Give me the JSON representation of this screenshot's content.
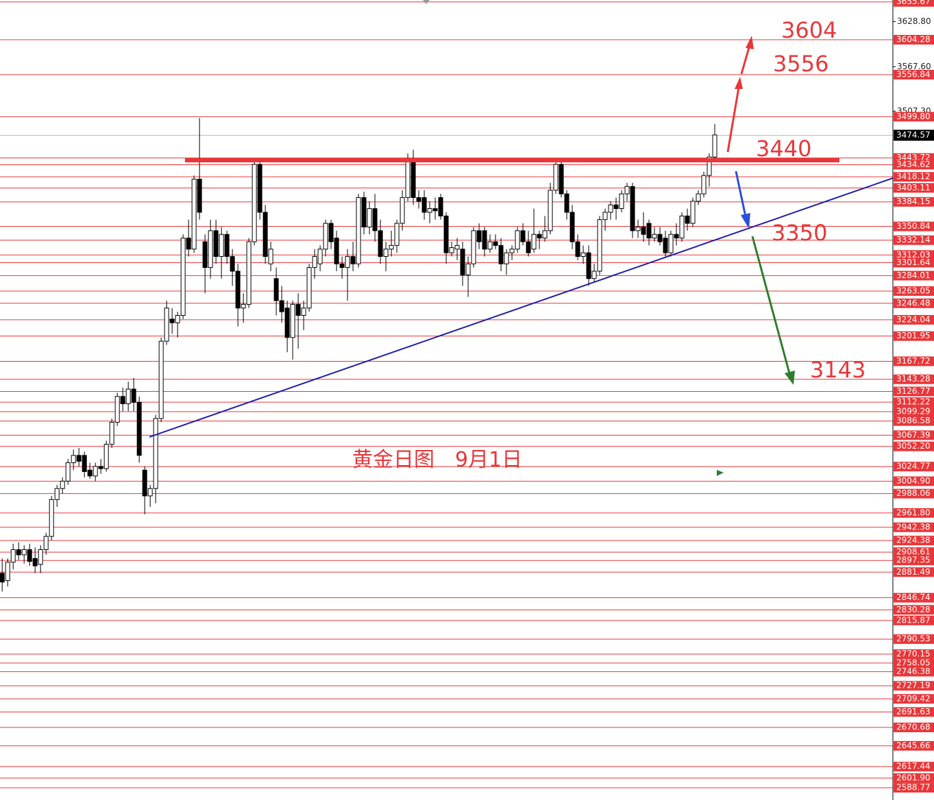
{
  "chart_data": {
    "type": "candlestick",
    "title": "黄金日图　9月1日",
    "annotations": [
      "3604",
      "3556",
      "3440",
      "3350",
      "3143"
    ],
    "xlim": [
      -0.4,
      162.5
    ],
    "ylim": [
      2572.1,
      3658.2
    ],
    "current_price": 3474.57,
    "level_color": "#e8373a",
    "up_color": "#ffffff",
    "down_color": "#000000",
    "yticks": [
      {
        "value": 3628.8,
        "label": "3628.80"
      },
      {
        "value": 3567.6,
        "label": "3567.60"
      },
      {
        "value": 3507.3,
        "label": "3507.30"
      }
    ],
    "levels": [
      3655.67,
      3604.28,
      3556.84,
      {
        "value": 3499.8,
        "label": "3499.80"
      },
      3443.72,
      3434.62,
      3418.12,
      3403.11,
      3384.15,
      3350.84,
      3332.14,
      3312.03,
      3301.64,
      3284.01,
      3263.05,
      3246.48,
      3224.04,
      3201.95,
      3167.72,
      3143.28,
      3126.77,
      3112.22,
      3099.29,
      3086.58,
      3067.39,
      {
        "value": 3052.2,
        "label": "3052.20"
      },
      3024.77,
      {
        "value": 3004.9,
        "label": "3004.90"
      },
      2988.06,
      {
        "value": 2961.8,
        "label": "2961.80"
      },
      2942.38,
      2924.38,
      2908.61,
      2897.35,
      2881.49,
      2846.74,
      2830.28,
      2815.87,
      2790.53,
      2770.15,
      2758.05,
      2746.38,
      2727.19,
      2709.42,
      2691.63,
      2670.68,
      2645.66,
      2617.44,
      {
        "value": 2601.9,
        "label": "2601.90"
      },
      2588.77
    ],
    "ohlc": [
      [
        2880,
        2900,
        2855,
        2868
      ],
      [
        2870,
        2900,
        2862,
        2895
      ],
      [
        2895,
        2920,
        2885,
        2912
      ],
      [
        2912,
        2922,
        2898,
        2905
      ],
      [
        2905,
        2918,
        2893,
        2912
      ],
      [
        2912,
        2920,
        2890,
        2896
      ],
      [
        2900,
        2915,
        2880,
        2890
      ],
      [
        2892,
        2918,
        2880,
        2912
      ],
      [
        2912,
        2935,
        2905,
        2930
      ],
      [
        2930,
        2985,
        2925,
        2980
      ],
      [
        2980,
        3000,
        2970,
        2995
      ],
      [
        2995,
        3010,
        2988,
        3005
      ],
      [
        3005,
        3035,
        3000,
        3030
      ],
      [
        3030,
        3048,
        3020,
        3040
      ],
      [
        3040,
        3050,
        3025,
        3032
      ],
      [
        3040,
        3045,
        3010,
        3018
      ],
      [
        3020,
        3030,
        3008,
        3012
      ],
      [
        3012,
        3030,
        3005,
        3025
      ],
      [
        3025,
        3035,
        3015,
        3022
      ],
      [
        3022,
        3060,
        3018,
        3055
      ],
      [
        3055,
        3090,
        3050,
        3085
      ],
      [
        3085,
        3125,
        3080,
        3120
      ],
      [
        3120,
        3132,
        3100,
        3110
      ],
      [
        3110,
        3140,
        3100,
        3130
      ],
      [
        3130,
        3145,
        3100,
        3112
      ],
      [
        3112,
        3120,
        3030,
        3040
      ],
      [
        3020,
        3025,
        2960,
        2985
      ],
      [
        2985,
        3000,
        2970,
        2995
      ],
      [
        2995,
        3095,
        2975,
        3090
      ],
      [
        3090,
        3200,
        3085,
        3195
      ],
      [
        3195,
        3250,
        3190,
        3240
      ],
      [
        3225,
        3240,
        3205,
        3220
      ],
      [
        3220,
        3235,
        3200,
        3230
      ],
      [
        3230,
        3340,
        3225,
        3335
      ],
      [
        3335,
        3360,
        3310,
        3320
      ],
      [
        3320,
        3420,
        3315,
        3415
      ],
      [
        3415,
        3498,
        3360,
        3370
      ],
      [
        3330,
        3340,
        3260,
        3295
      ],
      [
        3295,
        3360,
        3280,
        3345
      ],
      [
        3345,
        3360,
        3300,
        3310
      ],
      [
        3310,
        3350,
        3280,
        3340
      ],
      [
        3340,
        3345,
        3300,
        3310
      ],
      [
        3310,
        3320,
        3270,
        3290
      ],
      [
        3290,
        3300,
        3215,
        3240
      ],
      [
        3240,
        3260,
        3220,
        3245
      ],
      [
        3245,
        3335,
        3240,
        3330
      ],
      [
        3330,
        3440,
        3325,
        3435
      ],
      [
        3435,
        3440,
        3360,
        3370
      ],
      [
        3370,
        3380,
        3300,
        3310
      ],
      [
        3300,
        3330,
        3290,
        3320
      ],
      [
        3280,
        3295,
        3230,
        3250
      ],
      [
        3250,
        3270,
        3220,
        3235
      ],
      [
        3240,
        3250,
        3180,
        3200
      ],
      [
        3200,
        3250,
        3170,
        3245
      ],
      [
        3245,
        3260,
        3185,
        3230
      ],
      [
        3230,
        3250,
        3210,
        3240
      ],
      [
        3240,
        3300,
        3235,
        3295
      ],
      [
        3295,
        3320,
        3280,
        3310
      ],
      [
        3300,
        3325,
        3290,
        3320
      ],
      [
        3320,
        3360,
        3310,
        3355
      ],
      [
        3355,
        3360,
        3320,
        3330
      ],
      [
        3335,
        3345,
        3290,
        3300
      ],
      [
        3300,
        3310,
        3280,
        3295
      ],
      [
        3295,
        3320,
        3250,
        3310
      ],
      [
        3310,
        3330,
        3290,
        3300
      ],
      [
        3300,
        3395,
        3295,
        3390
      ],
      [
        3390,
        3398,
        3340,
        3350
      ],
      [
        3350,
        3385,
        3340,
        3375
      ],
      [
        3375,
        3395,
        3330,
        3345
      ],
      [
        3345,
        3360,
        3300,
        3310
      ],
      [
        3310,
        3330,
        3290,
        3320
      ],
      [
        3320,
        3345,
        3310,
        3325
      ],
      [
        3325,
        3360,
        3315,
        3355
      ],
      [
        3355,
        3400,
        3345,
        3390
      ],
      [
        3390,
        3450,
        3385,
        3440
      ],
      [
        3440,
        3455,
        3380,
        3390
      ],
      [
        3390,
        3400,
        3375,
        3385
      ],
      [
        3390,
        3400,
        3360,
        3370
      ],
      [
        3370,
        3385,
        3355,
        3375
      ],
      [
        3375,
        3390,
        3360,
        3372
      ],
      [
        3390,
        3395,
        3360,
        3365
      ],
      [
        3365,
        3370,
        3300,
        3315
      ],
      [
        3315,
        3330,
        3310,
        3322
      ],
      [
        3320,
        3335,
        3305,
        3325
      ],
      [
        3320,
        3330,
        3270,
        3285
      ],
      [
        3285,
        3310,
        3255,
        3300
      ],
      [
        3300,
        3350,
        3295,
        3345
      ],
      [
        3345,
        3355,
        3320,
        3330
      ],
      [
        3345,
        3350,
        3310,
        3320
      ],
      [
        3320,
        3340,
        3315,
        3330
      ],
      [
        3330,
        3340,
        3320,
        3325
      ],
      [
        3325,
        3335,
        3290,
        3300
      ],
      [
        3300,
        3320,
        3285,
        3315
      ],
      [
        3315,
        3325,
        3305,
        3320
      ],
      [
        3320,
        3350,
        3315,
        3345
      ],
      [
        3345,
        3355,
        3325,
        3330
      ],
      [
        3330,
        3345,
        3310,
        3315
      ],
      [
        3320,
        3375,
        3315,
        3340
      ],
      [
        3340,
        3345,
        3320,
        3335
      ],
      [
        3335,
        3365,
        3330,
        3345
      ],
      [
        3345,
        3410,
        3340,
        3400
      ],
      [
        3400,
        3440,
        3395,
        3435
      ],
      [
        3435,
        3440,
        3390,
        3395
      ],
      [
        3395,
        3400,
        3360,
        3370
      ],
      [
        3370,
        3380,
        3320,
        3330
      ],
      [
        3330,
        3340,
        3305,
        3310
      ],
      [
        3310,
        3325,
        3300,
        3315
      ],
      [
        3315,
        3325,
        3270,
        3280
      ],
      [
        3280,
        3300,
        3275,
        3290
      ],
      [
        3290,
        3365,
        3285,
        3360
      ],
      [
        3360,
        3375,
        3345,
        3370
      ],
      [
        3370,
        3385,
        3360,
        3380
      ],
      [
        3380,
        3390,
        3360,
        3375
      ],
      [
        3375,
        3400,
        3370,
        3395
      ],
      [
        3395,
        3410,
        3385,
        3405
      ],
      [
        3405,
        3410,
        3335,
        3345
      ],
      [
        3345,
        3360,
        3335,
        3350
      ],
      [
        3350,
        3370,
        3330,
        3340
      ],
      [
        3355,
        3360,
        3325,
        3335
      ],
      [
        3335,
        3350,
        3330,
        3340
      ],
      [
        3340,
        3350,
        3325,
        3330
      ],
      [
        3335,
        3345,
        3310,
        3315
      ],
      [
        3315,
        3345,
        3310,
        3340
      ],
      [
        3340,
        3355,
        3325,
        3335
      ],
      [
        3335,
        3370,
        3330,
        3365
      ],
      [
        3365,
        3375,
        3345,
        3355
      ],
      [
        3355,
        3390,
        3350,
        3385
      ],
      [
        3385,
        3400,
        3380,
        3395
      ],
      [
        3395,
        3425,
        3390,
        3420
      ],
      [
        3420,
        3450,
        3405,
        3445
      ],
      [
        3445,
        3490,
        3440,
        3475
      ]
    ]
  }
}
